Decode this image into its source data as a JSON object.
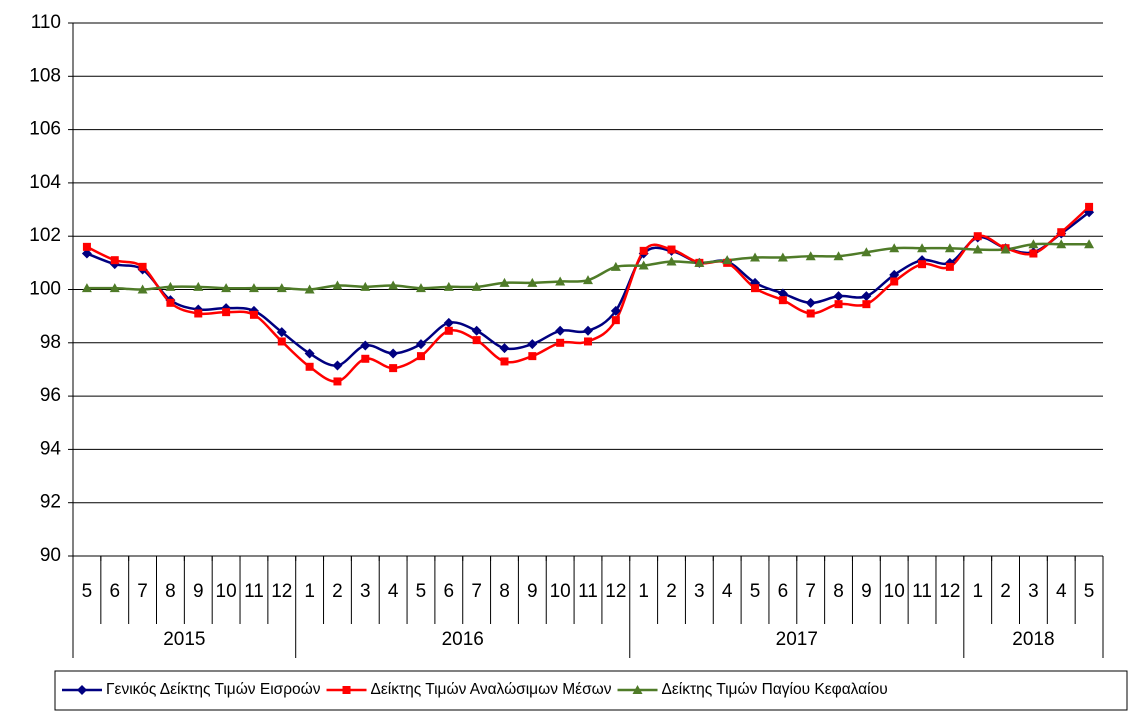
{
  "chart_data": {
    "type": "line",
    "categories": [
      "5",
      "6",
      "7",
      "8",
      "9",
      "10",
      "11",
      "12",
      "1",
      "2",
      "3",
      "4",
      "5",
      "6",
      "7",
      "8",
      "9",
      "10",
      "11",
      "12",
      "1",
      "2",
      "3",
      "4",
      "5",
      "6",
      "7",
      "8",
      "9",
      "10",
      "11",
      "12",
      "1",
      "2",
      "3",
      "4",
      "5"
    ],
    "year_groups": [
      "2015",
      "2016",
      "2017",
      "2018"
    ],
    "series": [
      {
        "name": "Γενικός Δείκτης Τιμών Εισροών",
        "color": "#000080",
        "marker": "diamond",
        "values": [
          101.35,
          100.95,
          100.75,
          99.6,
          99.25,
          99.3,
          99.2,
          98.4,
          97.6,
          97.15,
          97.9,
          97.6,
          97.95,
          98.75,
          98.45,
          97.8,
          97.95,
          98.45,
          98.45,
          99.2,
          101.35,
          101.45,
          101.0,
          101.05,
          100.25,
          99.85,
          99.5,
          99.75,
          99.75,
          100.55,
          101.1,
          101.0,
          101.95,
          101.55,
          101.4,
          102.1,
          102.9
        ]
      },
      {
        "name": "Δείκτης Τιμών Αναλώσιμων Μέσων",
        "color": "#ff0000",
        "marker": "square",
        "values": [
          101.6,
          101.1,
          100.85,
          99.5,
          99.1,
          99.15,
          99.05,
          98.05,
          97.1,
          96.55,
          97.4,
          97.05,
          97.5,
          98.45,
          98.1,
          97.3,
          97.5,
          98.0,
          98.05,
          98.85,
          101.45,
          101.5,
          101.0,
          101.0,
          100.05,
          99.6,
          99.1,
          99.45,
          99.45,
          100.3,
          100.95,
          100.85,
          102.0,
          101.55,
          101.35,
          102.15,
          103.1
        ]
      },
      {
        "name": "Δείκτης Τιμών Παγίου Κεφαλαίου",
        "color": "#4f7b28",
        "marker": "triangle",
        "values": [
          100.05,
          100.05,
          100.0,
          100.1,
          100.1,
          100.05,
          100.05,
          100.05,
          100.0,
          100.15,
          100.1,
          100.15,
          100.05,
          100.1,
          100.1,
          100.25,
          100.25,
          100.3,
          100.35,
          100.85,
          100.9,
          101.05,
          101.0,
          101.1,
          101.2,
          101.2,
          101.25,
          101.25,
          101.4,
          101.55,
          101.55,
          101.55,
          101.5,
          101.5,
          101.7,
          101.7,
          101.7
        ]
      }
    ],
    "ylim": [
      90,
      110
    ],
    "yticks": [
      90,
      92,
      94,
      96,
      98,
      100,
      102,
      104,
      106,
      108,
      110
    ],
    "grid": true
  }
}
